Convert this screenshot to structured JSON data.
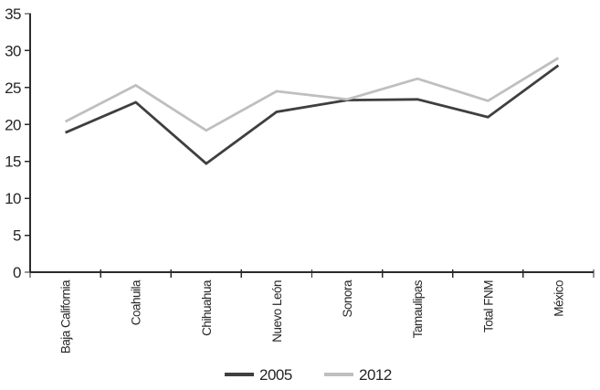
{
  "chart_data": {
    "type": "line",
    "title": "",
    "xlabel": "",
    "ylabel": "",
    "categories": [
      "Baja California",
      "Coahuila",
      "Chihuahua",
      "Nuevo León",
      "Sonora",
      "Tamaulipas",
      "Total FNM",
      "México"
    ],
    "series": [
      {
        "name": "2005",
        "color": "#3f3f3f",
        "values": [
          18.9,
          23.0,
          14.7,
          21.7,
          23.3,
          23.4,
          21.0,
          28.0
        ]
      },
      {
        "name": "2012",
        "color": "#bfbfbf",
        "values": [
          20.4,
          25.3,
          19.2,
          24.5,
          23.4,
          26.2,
          23.2,
          29.0
        ]
      }
    ],
    "ylim": [
      0,
      35
    ],
    "ytick_step": 5,
    "yticks": [
      0,
      5,
      10,
      15,
      20,
      25,
      30,
      35
    ],
    "grid": false,
    "legend_position": "bottom-center",
    "axis_color": "#2b2b2b",
    "text_color": "#262626",
    "background": "#ffffff"
  }
}
